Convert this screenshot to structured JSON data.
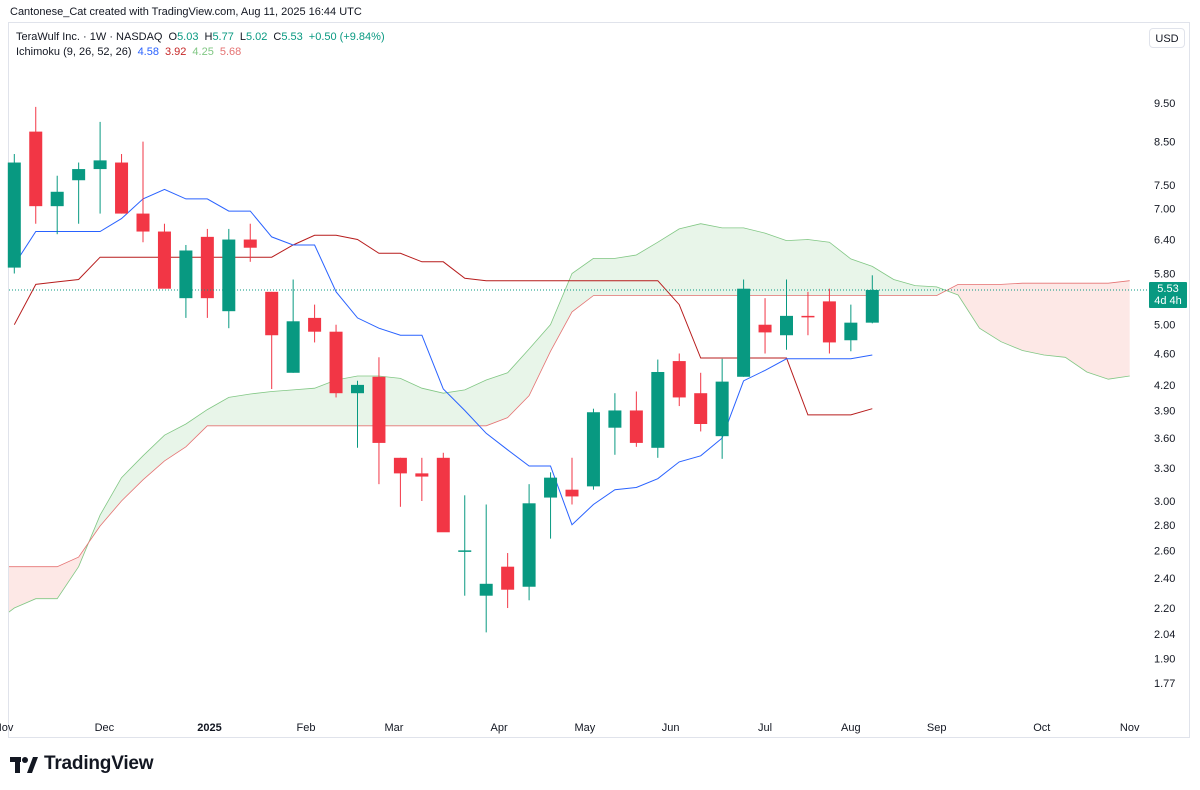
{
  "header": {
    "attribution": "Cantonese_Cat created with TradingView.com, Aug 11, 2025 16:44 UTC"
  },
  "legend": {
    "symbol_line": "TeraWulf Inc. · 1W · NASDAQ",
    "o_label": "O",
    "o_value": "5.03",
    "h_label": "H",
    "h_value": "5.77",
    "l_label": "L",
    "l_value": "5.02",
    "c_label": "C",
    "c_value": "5.53",
    "change": "+0.50 (+9.84%)",
    "indicator_name": "Ichimoku (9, 26, 52, 26)",
    "ind_v1": "4.58",
    "ind_v2": "3.92",
    "ind_v3": "4.25",
    "ind_v4": "5.68"
  },
  "currency_button": "USD",
  "price_label": {
    "price": "5.53",
    "countdown": "4d 4h"
  },
  "footer": {
    "brand": "TradingView"
  },
  "colors": {
    "up": "#089981",
    "down": "#f23645",
    "tenkan": "#2962ff",
    "kijun": "#b71c1c",
    "span_a": "#81c784",
    "span_b": "#e57373",
    "cloud_bull": "#e8f5e9",
    "cloud_bear": "#fde8e6"
  },
  "chart_data": {
    "type": "candlestick",
    "title": "TeraWulf Inc. · 1W · NASDAQ",
    "scale": "log",
    "y_range": [
      1.7,
      10.4
    ],
    "y_ticks": [
      9.5,
      8.5,
      7.5,
      7.0,
      6.4,
      5.8,
      5.0,
      4.6,
      4.2,
      3.9,
      3.6,
      3.3,
      3.0,
      2.8,
      2.6,
      2.4,
      2.2,
      2.04,
      1.9,
      1.77
    ],
    "y_tick_labels": [
      "9.50",
      "8.50",
      "7.50",
      "7.00",
      "6.40",
      "5.80",
      "5.00",
      "4.60",
      "4.20",
      "3.90",
      "3.60",
      "3.30",
      "3.00",
      "2.80",
      "2.60",
      "2.40",
      "2.20",
      "2.04",
      "1.90",
      "1.77"
    ],
    "x_ticks": [
      {
        "label": "Nov",
        "week": -0.5,
        "bold": false
      },
      {
        "label": "Dec",
        "week": 4.2,
        "bold": false
      },
      {
        "label": "2025",
        "week": 9.1,
        "bold": true
      },
      {
        "label": "Feb",
        "week": 13.6,
        "bold": false
      },
      {
        "label": "Mar",
        "week": 17.7,
        "bold": false
      },
      {
        "label": "Apr",
        "week": 22.6,
        "bold": false
      },
      {
        "label": "May",
        "week": 26.6,
        "bold": false
      },
      {
        "label": "Jun",
        "week": 30.6,
        "bold": false
      },
      {
        "label": "Jul",
        "week": 35.0,
        "bold": false
      },
      {
        "label": "Aug",
        "week": 39.0,
        "bold": false
      },
      {
        "label": "Sep",
        "week": 43.0,
        "bold": false
      },
      {
        "label": "Oct",
        "week": 47.9,
        "bold": false
      },
      {
        "label": "Nov",
        "week": 52.0,
        "bold": false
      }
    ],
    "candles": [
      {
        "o": 5.9,
        "h": 8.2,
        "l": 5.8,
        "c": 8.0
      },
      {
        "o": 8.75,
        "h": 9.4,
        "l": 6.7,
        "c": 7.05
      },
      {
        "o": 7.05,
        "h": 7.7,
        "l": 6.5,
        "c": 7.35
      },
      {
        "o": 7.6,
        "h": 8.0,
        "l": 6.7,
        "c": 7.85
      },
      {
        "o": 7.85,
        "h": 9.0,
        "l": 6.9,
        "c": 8.05
      },
      {
        "o": 8.0,
        "h": 8.2,
        "l": 6.9,
        "c": 6.9
      },
      {
        "o": 6.9,
        "h": 8.5,
        "l": 6.35,
        "c": 6.55
      },
      {
        "o": 6.55,
        "h": 6.7,
        "l": 5.6,
        "c": 5.55
      },
      {
        "o": 5.4,
        "h": 6.3,
        "l": 5.1,
        "c": 6.2
      },
      {
        "o": 6.45,
        "h": 6.6,
        "l": 5.1,
        "c": 5.4
      },
      {
        "o": 5.2,
        "h": 6.6,
        "l": 4.95,
        "c": 6.4
      },
      {
        "o": 6.4,
        "h": 6.7,
        "l": 6.0,
        "c": 6.25
      },
      {
        "o": 5.5,
        "h": 5.5,
        "l": 4.15,
        "c": 4.85
      },
      {
        "o": 4.35,
        "h": 5.7,
        "l": 4.35,
        "c": 5.05
      },
      {
        "o": 5.1,
        "h": 5.3,
        "l": 4.75,
        "c": 4.9
      },
      {
        "o": 4.9,
        "h": 5.0,
        "l": 4.05,
        "c": 4.1
      },
      {
        "o": 4.1,
        "h": 4.25,
        "l": 3.5,
        "c": 4.2
      },
      {
        "o": 4.3,
        "h": 4.55,
        "l": 3.15,
        "c": 3.55
      },
      {
        "o": 3.4,
        "h": 3.4,
        "l": 2.95,
        "c": 3.25
      },
      {
        "o": 3.25,
        "h": 3.4,
        "l": 3.0,
        "c": 3.22
      },
      {
        "o": 3.4,
        "h": 3.45,
        "l": 2.8,
        "c": 2.74
      },
      {
        "o": 2.6,
        "h": 3.05,
        "l": 2.28,
        "c": 2.6
      },
      {
        "o": 2.28,
        "h": 2.97,
        "l": 2.05,
        "c": 2.36
      },
      {
        "o": 2.48,
        "h": 2.58,
        "l": 2.2,
        "c": 2.32
      },
      {
        "o": 2.34,
        "h": 3.15,
        "l": 2.25,
        "c": 2.98
      },
      {
        "o": 3.03,
        "h": 3.26,
        "l": 2.69,
        "c": 3.21
      },
      {
        "o": 3.1,
        "h": 3.4,
        "l": 2.97,
        "c": 3.04
      },
      {
        "o": 3.13,
        "h": 3.92,
        "l": 3.1,
        "c": 3.88
      },
      {
        "o": 3.71,
        "h": 4.1,
        "l": 3.43,
        "c": 3.9
      },
      {
        "o": 3.9,
        "h": 4.12,
        "l": 3.51,
        "c": 3.55
      },
      {
        "o": 3.5,
        "h": 4.52,
        "l": 3.4,
        "c": 4.36
      },
      {
        "o": 4.5,
        "h": 4.6,
        "l": 3.95,
        "c": 4.05
      },
      {
        "o": 4.1,
        "h": 4.35,
        "l": 3.67,
        "c": 3.75
      },
      {
        "o": 3.62,
        "h": 4.53,
        "l": 3.39,
        "c": 4.24
      },
      {
        "o": 4.3,
        "h": 5.7,
        "l": 4.3,
        "c": 5.55
      },
      {
        "o": 5.0,
        "h": 5.4,
        "l": 4.6,
        "c": 4.89
      },
      {
        "o": 4.85,
        "h": 5.7,
        "l": 4.65,
        "c": 5.13
      },
      {
        "o": 5.13,
        "h": 5.5,
        "l": 4.85,
        "c": 5.12
      },
      {
        "o": 5.35,
        "h": 5.55,
        "l": 4.6,
        "c": 4.75
      },
      {
        "o": 4.78,
        "h": 5.3,
        "l": 4.63,
        "c": 5.03
      },
      {
        "o": 5.03,
        "h": 5.77,
        "l": 5.02,
        "c": 5.53
      }
    ],
    "tenkan": [
      {
        "w": 0,
        "v": 5.95
      },
      {
        "w": 1,
        "v": 6.55
      },
      {
        "w": 2,
        "v": 6.55
      },
      {
        "w": 3,
        "v": 6.55
      },
      {
        "w": 4,
        "v": 6.55
      },
      {
        "w": 5,
        "v": 6.8
      },
      {
        "w": 6,
        "v": 7.2
      },
      {
        "w": 7,
        "v": 7.4
      },
      {
        "w": 8,
        "v": 7.2
      },
      {
        "w": 9,
        "v": 7.2
      },
      {
        "w": 10,
        "v": 6.95
      },
      {
        "w": 11,
        "v": 6.95
      },
      {
        "w": 12,
        "v": 6.45
      },
      {
        "w": 13,
        "v": 6.3
      },
      {
        "w": 14,
        "v": 6.3
      },
      {
        "w": 15,
        "v": 5.5
      },
      {
        "w": 16,
        "v": 5.1
      },
      {
        "w": 17,
        "v": 4.95
      },
      {
        "w": 18,
        "v": 4.85
      },
      {
        "w": 19,
        "v": 4.85
      },
      {
        "w": 20,
        "v": 4.15
      },
      {
        "w": 21,
        "v": 3.9
      },
      {
        "w": 22,
        "v": 3.65
      },
      {
        "w": 23,
        "v": 3.48
      },
      {
        "w": 24,
        "v": 3.32
      },
      {
        "w": 25,
        "v": 3.32
      },
      {
        "w": 26,
        "v": 2.8
      },
      {
        "w": 27,
        "v": 2.97
      },
      {
        "w": 28,
        "v": 3.1
      },
      {
        "w": 29,
        "v": 3.12
      },
      {
        "w": 30,
        "v": 3.2
      },
      {
        "w": 31,
        "v": 3.36
      },
      {
        "w": 32,
        "v": 3.42
      },
      {
        "w": 33,
        "v": 3.6
      },
      {
        "w": 34,
        "v": 4.25
      },
      {
        "w": 35,
        "v": 4.38
      },
      {
        "w": 36,
        "v": 4.53
      },
      {
        "w": 37,
        "v": 4.53
      },
      {
        "w": 38,
        "v": 4.53
      },
      {
        "w": 39,
        "v": 4.53
      },
      {
        "w": 40,
        "v": 4.58
      }
    ],
    "kijun": [
      {
        "w": 0,
        "v": 5.0
      },
      {
        "w": 1,
        "v": 5.62
      },
      {
        "w": 2,
        "v": 5.66
      },
      {
        "w": 3,
        "v": 5.7
      },
      {
        "w": 4,
        "v": 6.08
      },
      {
        "w": 5,
        "v": 6.08
      },
      {
        "w": 6,
        "v": 6.08
      },
      {
        "w": 7,
        "v": 6.08
      },
      {
        "w": 8,
        "v": 6.08
      },
      {
        "w": 9,
        "v": 6.08
      },
      {
        "w": 10,
        "v": 6.08
      },
      {
        "w": 11,
        "v": 6.08
      },
      {
        "w": 12,
        "v": 6.08
      },
      {
        "w": 13,
        "v": 6.3
      },
      {
        "w": 14,
        "v": 6.48
      },
      {
        "w": 15,
        "v": 6.48
      },
      {
        "w": 16,
        "v": 6.4
      },
      {
        "w": 17,
        "v": 6.15
      },
      {
        "w": 18,
        "v": 6.15
      },
      {
        "w": 19,
        "v": 6.0
      },
      {
        "w": 20,
        "v": 6.0
      },
      {
        "w": 21,
        "v": 5.72
      },
      {
        "w": 22,
        "v": 5.68
      },
      {
        "w": 23,
        "v": 5.68
      },
      {
        "w": 24,
        "v": 5.68
      },
      {
        "w": 25,
        "v": 5.68
      },
      {
        "w": 26,
        "v": 5.68
      },
      {
        "w": 27,
        "v": 5.68
      },
      {
        "w": 28,
        "v": 5.68
      },
      {
        "w": 29,
        "v": 5.68
      },
      {
        "w": 30,
        "v": 5.68
      },
      {
        "w": 31,
        "v": 5.3
      },
      {
        "w": 32,
        "v": 4.54
      },
      {
        "w": 33,
        "v": 4.54
      },
      {
        "w": 34,
        "v": 4.54
      },
      {
        "w": 35,
        "v": 4.54
      },
      {
        "w": 36,
        "v": 4.54
      },
      {
        "w": 37,
        "v": 3.85
      },
      {
        "w": 38,
        "v": 3.85
      },
      {
        "w": 39,
        "v": 3.85
      },
      {
        "w": 40,
        "v": 3.92
      }
    ],
    "span_a": [
      {
        "w": -0.5,
        "v": 2.15
      },
      {
        "w": 0,
        "v": 2.2
      },
      {
        "w": 1,
        "v": 2.26
      },
      {
        "w": 2,
        "v": 2.26
      },
      {
        "w": 3,
        "v": 2.48
      },
      {
        "w": 4,
        "v": 2.88
      },
      {
        "w": 5,
        "v": 3.21
      },
      {
        "w": 6,
        "v": 3.42
      },
      {
        "w": 7,
        "v": 3.63
      },
      {
        "w": 8,
        "v": 3.75
      },
      {
        "w": 9,
        "v": 3.91
      },
      {
        "w": 10,
        "v": 4.05
      },
      {
        "w": 11,
        "v": 4.09
      },
      {
        "w": 12,
        "v": 4.12
      },
      {
        "w": 13,
        "v": 4.14
      },
      {
        "w": 14,
        "v": 4.16
      },
      {
        "w": 15,
        "v": 4.26
      },
      {
        "w": 16,
        "v": 4.31
      },
      {
        "w": 17,
        "v": 4.31
      },
      {
        "w": 18,
        "v": 4.28
      },
      {
        "w": 19,
        "v": 4.16
      },
      {
        "w": 20,
        "v": 4.1
      },
      {
        "w": 21,
        "v": 4.14
      },
      {
        "w": 22,
        "v": 4.26
      },
      {
        "w": 23,
        "v": 4.35
      },
      {
        "w": 24,
        "v": 4.66
      },
      {
        "w": 25,
        "v": 5.0
      },
      {
        "w": 26,
        "v": 5.8
      },
      {
        "w": 27,
        "v": 6.06
      },
      {
        "w": 28,
        "v": 6.06
      },
      {
        "w": 29,
        "v": 6.12
      },
      {
        "w": 30,
        "v": 6.35
      },
      {
        "w": 31,
        "v": 6.6
      },
      {
        "w": 32,
        "v": 6.7
      },
      {
        "w": 33,
        "v": 6.62
      },
      {
        "w": 34,
        "v": 6.62
      },
      {
        "w": 35,
        "v": 6.52
      },
      {
        "w": 36,
        "v": 6.38
      },
      {
        "w": 37,
        "v": 6.4
      },
      {
        "w": 38,
        "v": 6.35
      },
      {
        "w": 39,
        "v": 6.05
      },
      {
        "w": 40,
        "v": 5.92
      },
      {
        "w": 41,
        "v": 5.7
      },
      {
        "w": 42,
        "v": 5.6
      },
      {
        "w": 43,
        "v": 5.58
      },
      {
        "w": 44,
        "v": 5.45
      },
      {
        "w": 45,
        "v": 4.95
      },
      {
        "w": 46,
        "v": 4.76
      },
      {
        "w": 47,
        "v": 4.64
      },
      {
        "w": 48,
        "v": 4.58
      },
      {
        "w": 49,
        "v": 4.55
      },
      {
        "w": 50,
        "v": 4.36
      },
      {
        "w": 51,
        "v": 4.27
      },
      {
        "w": 52,
        "v": 4.31
      }
    ],
    "span_b": [
      {
        "w": -0.5,
        "v": 2.48
      },
      {
        "w": 0,
        "v": 2.48
      },
      {
        "w": 1,
        "v": 2.48
      },
      {
        "w": 2,
        "v": 2.48
      },
      {
        "w": 3,
        "v": 2.55
      },
      {
        "w": 4,
        "v": 2.79
      },
      {
        "w": 5,
        "v": 3.0
      },
      {
        "w": 6,
        "v": 3.19
      },
      {
        "w": 7,
        "v": 3.37
      },
      {
        "w": 8,
        "v": 3.51
      },
      {
        "w": 9,
        "v": 3.73
      },
      {
        "w": 10,
        "v": 3.73
      },
      {
        "w": 11,
        "v": 3.73
      },
      {
        "w": 12,
        "v": 3.73
      },
      {
        "w": 13,
        "v": 3.73
      },
      {
        "w": 14,
        "v": 3.73
      },
      {
        "w": 15,
        "v": 3.73
      },
      {
        "w": 16,
        "v": 3.73
      },
      {
        "w": 17,
        "v": 3.73
      },
      {
        "w": 18,
        "v": 3.73
      },
      {
        "w": 19,
        "v": 3.73
      },
      {
        "w": 20,
        "v": 3.73
      },
      {
        "w": 21,
        "v": 3.73
      },
      {
        "w": 22,
        "v": 3.73
      },
      {
        "w": 23,
        "v": 3.82
      },
      {
        "w": 24,
        "v": 4.07
      },
      {
        "w": 25,
        "v": 4.63
      },
      {
        "w": 26,
        "v": 5.19
      },
      {
        "w": 27,
        "v": 5.44
      },
      {
        "w": 28,
        "v": 5.44
      },
      {
        "w": 29,
        "v": 5.44
      },
      {
        "w": 30,
        "v": 5.44
      },
      {
        "w": 31,
        "v": 5.44
      },
      {
        "w": 32,
        "v": 5.44
      },
      {
        "w": 33,
        "v": 5.44
      },
      {
        "w": 34,
        "v": 5.44
      },
      {
        "w": 35,
        "v": 5.44
      },
      {
        "w": 36,
        "v": 5.44
      },
      {
        "w": 37,
        "v": 5.44
      },
      {
        "w": 38,
        "v": 5.44
      },
      {
        "w": 39,
        "v": 5.44
      },
      {
        "w": 40,
        "v": 5.44
      },
      {
        "w": 41,
        "v": 5.44
      },
      {
        "w": 42,
        "v": 5.44
      },
      {
        "w": 43,
        "v": 5.44
      },
      {
        "w": 44,
        "v": 5.62
      },
      {
        "w": 45,
        "v": 5.62
      },
      {
        "w": 46,
        "v": 5.62
      },
      {
        "w": 47,
        "v": 5.64
      },
      {
        "w": 48,
        "v": 5.64
      },
      {
        "w": 49,
        "v": 5.64
      },
      {
        "w": 50,
        "v": 5.64
      },
      {
        "w": 51,
        "v": 5.64
      },
      {
        "w": 52,
        "v": 5.68
      }
    ],
    "last_price": 5.53
  }
}
